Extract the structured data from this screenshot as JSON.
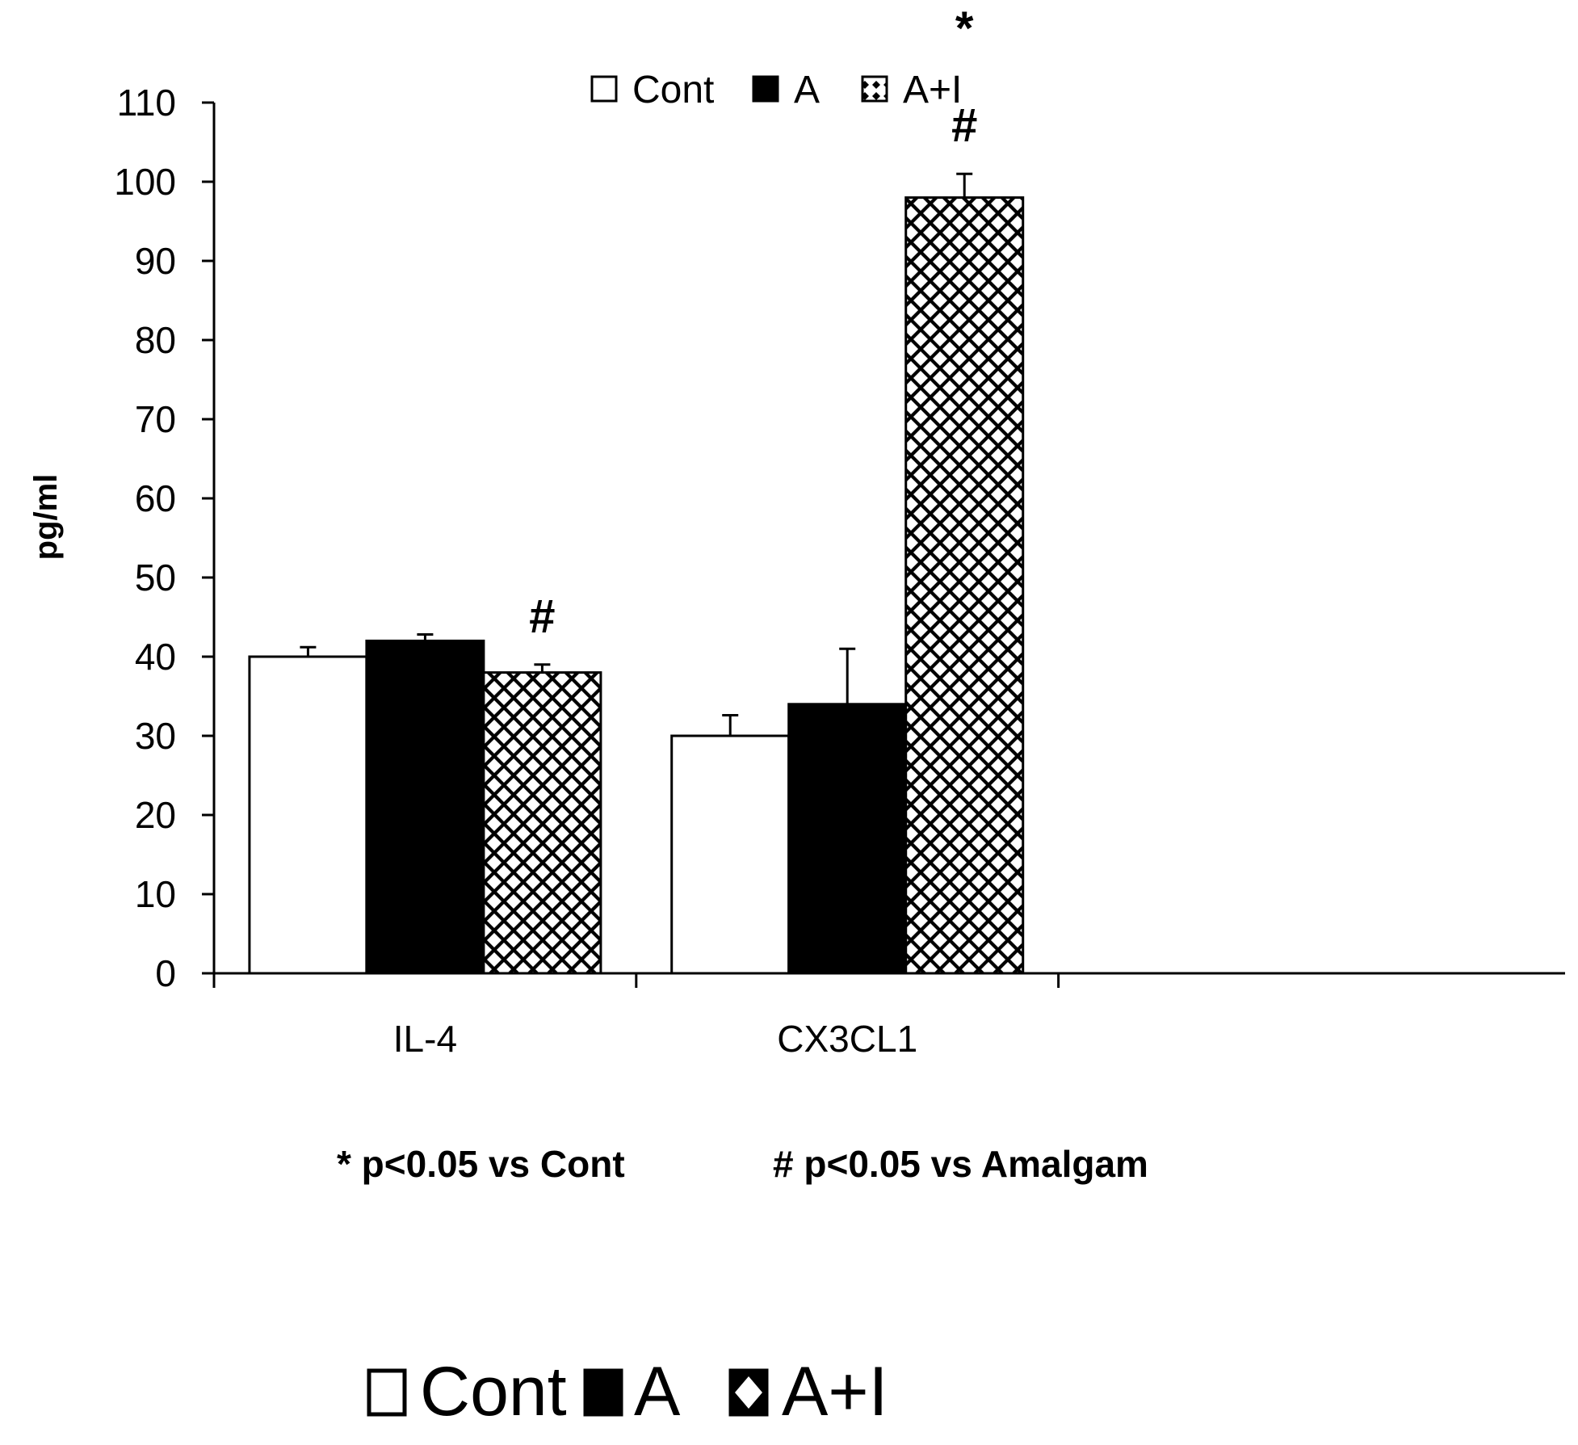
{
  "chart_data": {
    "type": "bar",
    "categories": [
      "IL-4",
      "CX3CL1"
    ],
    "series": [
      {
        "name": "Cont",
        "values": [
          40,
          30
        ],
        "errors": [
          1.2,
          2.6
        ],
        "pattern": "white"
      },
      {
        "name": "A",
        "values": [
          42,
          34
        ],
        "errors": [
          0.8,
          7.0
        ],
        "pattern": "black"
      },
      {
        "name": "A+I",
        "values": [
          38,
          98
        ],
        "errors": [
          1.0,
          3.0
        ],
        "pattern": "diamond"
      }
    ],
    "significance": [
      {
        "category": "CX3CL1",
        "series": "A+I",
        "marks": [
          "*",
          "#"
        ]
      },
      {
        "category": "IL-4",
        "series": "A+I",
        "marks": [
          "#"
        ]
      }
    ],
    "ylabel": "pg/ml",
    "xlabel": "",
    "ylim": [
      0,
      110
    ],
    "yticks": [
      0,
      10,
      20,
      30,
      40,
      50,
      60,
      70,
      80,
      90,
      100,
      110
    ],
    "grid": false,
    "legend": {
      "placement": "top-center",
      "entries": [
        "Cont",
        "A",
        "A+I"
      ]
    },
    "legend_bottom": {
      "placement": "bottom-left",
      "entries": [
        "Cont",
        "A",
        "A+I"
      ]
    },
    "footnotes": [
      "* p<0.05 vs Cont",
      "# p<0.05 vs Amalgam"
    ]
  },
  "colors": {
    "axis": "#000000",
    "bar_cont": "#ffffff",
    "bar_a": "#000000",
    "bar_ai_bg": "#000000",
    "bar_ai_dot": "#ffffff"
  }
}
